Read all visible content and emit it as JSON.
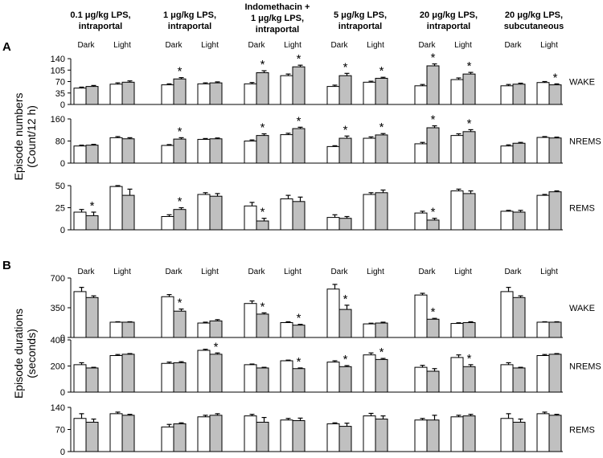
{
  "panel_labels": {
    "a": "A",
    "b": "B"
  },
  "y_labels": {
    "a_line1": "Episode numbers",
    "a_line2": "(Count/12 h)",
    "b_line1": "Episode durations",
    "b_line2": "(seconds)"
  },
  "conditions": [
    {
      "line1": "0.1 μg/kg LPS,",
      "line2": "intraportal",
      "line3": ""
    },
    {
      "line1": "1 μg/kg LPS,",
      "line2": "intraportal",
      "line3": ""
    },
    {
      "line1": "Indomethacin +",
      "line2": "1 μg/kg LPS,",
      "line3": "intraportal"
    },
    {
      "line1": "5 μg/kg LPS,",
      "line2": "intraportal",
      "line3": ""
    },
    {
      "line1": "20 μg/kg LPS,",
      "line2": "intraportal",
      "line3": ""
    },
    {
      "line1": "20 μg/kg LPS,",
      "line2": "subcutaneous",
      "line3": ""
    }
  ],
  "phases": [
    "Dark",
    "Light"
  ],
  "colors": {
    "control": "#ffffff",
    "treated": "#c0c0c0",
    "edge": "#000000"
  },
  "chart_data": [
    {
      "type": "bar",
      "panel": "A",
      "state": "WAKE",
      "ylim": [
        0,
        140
      ],
      "yticks": [
        0,
        35,
        70,
        105,
        140
      ],
      "ylabel": "Episode numbers (Count/12 h)",
      "categories": [
        "0.1 μg/kg LPS, intraportal",
        "1 μg/kg LPS, intraportal",
        "Indomethacin + 1 μg/kg LPS, intraportal",
        "5 μg/kg LPS, intraportal",
        "20 μg/kg LPS, intraportal",
        "20 μg/kg LPS, subcutaneous"
      ],
      "series": [
        {
          "name": "Dark control",
          "values": [
            50,
            60,
            63,
            55,
            57,
            57
          ],
          "errors": [
            3,
            3,
            4,
            4,
            4,
            4
          ]
        },
        {
          "name": "Dark LPS",
          "values": [
            55,
            78,
            97,
            88,
            118,
            62
          ],
          "errors": [
            3,
            4,
            6,
            7,
            6,
            3
          ],
          "significant": [
            false,
            true,
            true,
            true,
            true,
            false
          ]
        },
        {
          "name": "Light control",
          "values": [
            62,
            63,
            88,
            68,
            76,
            67
          ],
          "errors": [
            4,
            3,
            5,
            3,
            5,
            3
          ]
        },
        {
          "name": "Light LPS",
          "values": [
            68,
            66,
            115,
            80,
            93,
            60
          ],
          "errors": [
            4,
            3,
            5,
            3,
            5,
            3
          ],
          "significant": [
            false,
            false,
            true,
            true,
            true,
            true
          ]
        }
      ]
    },
    {
      "type": "bar",
      "panel": "A",
      "state": "NREMS",
      "ylim": [
        0,
        160
      ],
      "yticks": [
        0,
        80,
        160
      ],
      "categories": [
        "0.1 μg/kg LPS, intraportal",
        "1 μg/kg LPS, intraportal",
        "Indomethacin + 1 μg/kg LPS, intraportal",
        "5 μg/kg LPS, intraportal",
        "20 μg/kg LPS, intraportal",
        "20 μg/kg LPS, subcutaneous"
      ],
      "series": [
        {
          "name": "Dark control",
          "values": [
            62,
            64,
            80,
            60,
            70,
            62
          ],
          "errors": [
            3,
            3,
            4,
            3,
            5,
            4
          ]
        },
        {
          "name": "Dark LPS",
          "values": [
            65,
            87,
            100,
            90,
            128,
            72
          ],
          "errors": [
            3,
            5,
            6,
            8,
            7,
            3
          ],
          "significant": [
            false,
            true,
            true,
            true,
            true,
            false
          ]
        },
        {
          "name": "Light control",
          "values": [
            92,
            86,
            103,
            90,
            100,
            93
          ],
          "errors": [
            4,
            3,
            5,
            5,
            6,
            3
          ]
        },
        {
          "name": "Light LPS",
          "values": [
            88,
            88,
            125,
            102,
            114,
            91
          ],
          "errors": [
            4,
            3,
            5,
            5,
            7,
            3
          ],
          "significant": [
            false,
            false,
            true,
            true,
            true,
            false
          ]
        }
      ]
    },
    {
      "type": "bar",
      "panel": "A",
      "state": "REMS",
      "ylim": [
        0,
        50
      ],
      "yticks": [
        0,
        25,
        50
      ],
      "categories": [
        "0.1 μg/kg LPS, intraportal",
        "1 μg/kg LPS, intraportal",
        "Indomethacin + 1 μg/kg LPS, intraportal",
        "5 μg/kg LPS, intraportal",
        "20 μg/kg LPS, intraportal",
        "20 μg/kg LPS, subcutaneous"
      ],
      "series": [
        {
          "name": "Dark control",
          "values": [
            20,
            15,
            27,
            14,
            19,
            21
          ],
          "errors": [
            3,
            2,
            4,
            3,
            2,
            1
          ]
        },
        {
          "name": "Dark LPS",
          "values": [
            16,
            23,
            10,
            13,
            11,
            20
          ],
          "errors": [
            4,
            2,
            3,
            2,
            2,
            2
          ],
          "significant": [
            true,
            true,
            true,
            false,
            true,
            false
          ]
        },
        {
          "name": "Light control",
          "values": [
            49,
            40,
            35,
            40,
            44,
            39
          ],
          "errors": [
            1,
            2,
            4,
            2,
            2,
            1
          ]
        },
        {
          "name": "Light LPS",
          "values": [
            39,
            38,
            32,
            42,
            41,
            43
          ],
          "errors": [
            7,
            3,
            5,
            3,
            3,
            1
          ],
          "significant": [
            false,
            false,
            false,
            false,
            false,
            false
          ]
        }
      ]
    },
    {
      "type": "bar",
      "panel": "B",
      "state": "WAKE",
      "ylim": [
        0,
        700
      ],
      "yticks": [
        0,
        350,
        700
      ],
      "ylabel": "Episode durations (seconds)",
      "categories": [
        "0.1 μg/kg LPS, intraportal",
        "1 μg/kg LPS, intraportal",
        "Indomethacin + 1 μg/kg LPS, intraportal",
        "5 μg/kg LPS, intraportal",
        "20 μg/kg LPS, intraportal",
        "20 μg/kg LPS, subcutaneous"
      ],
      "series": [
        {
          "name": "Dark control",
          "values": [
            540,
            480,
            400,
            570,
            500,
            540
          ],
          "errors": [
            50,
            25,
            30,
            55,
            20,
            50
          ]
        },
        {
          "name": "Dark LPS",
          "values": [
            470,
            310,
            275,
            330,
            215,
            470
          ],
          "errors": [
            20,
            25,
            15,
            50,
            10,
            20
          ],
          "significant": [
            false,
            true,
            true,
            true,
            true,
            false
          ]
        },
        {
          "name": "Light control",
          "values": [
            180,
            170,
            175,
            160,
            165,
            180
          ],
          "errors": [
            5,
            10,
            10,
            8,
            8,
            5
          ]
        },
        {
          "name": "Light LPS",
          "values": [
            180,
            195,
            145,
            170,
            175,
            180
          ],
          "errors": [
            5,
            15,
            10,
            10,
            10,
            5
          ],
          "significant": [
            false,
            false,
            true,
            false,
            false,
            false
          ]
        }
      ]
    },
    {
      "type": "bar",
      "panel": "B",
      "state": "NREMS",
      "ylim": [
        0,
        400
      ],
      "yticks": [
        0,
        200,
        400
      ],
      "categories": [
        "0.1 μg/kg LPS, intraportal",
        "1 μg/kg LPS, intraportal",
        "Indomethacin + 1 μg/kg LPS, intraportal",
        "5 μg/kg LPS, intraportal",
        "20 μg/kg LPS, intraportal",
        "20 μg/kg LPS, subcutaneous"
      ],
      "series": [
        {
          "name": "Dark control",
          "values": [
            210,
            220,
            210,
            230,
            190,
            210
          ],
          "errors": [
            15,
            10,
            5,
            10,
            15,
            15
          ]
        },
        {
          "name": "Dark LPS",
          "values": [
            185,
            225,
            185,
            195,
            160,
            185
          ],
          "errors": [
            5,
            8,
            5,
            8,
            20,
            5
          ],
          "significant": [
            false,
            false,
            false,
            true,
            false,
            false
          ]
        },
        {
          "name": "Light control",
          "values": [
            280,
            320,
            240,
            285,
            265,
            280
          ],
          "errors": [
            8,
            8,
            5,
            15,
            20,
            8
          ]
        },
        {
          "name": "Light LPS",
          "values": [
            290,
            290,
            180,
            250,
            195,
            290
          ],
          "errors": [
            5,
            10,
            5,
            8,
            15,
            5
          ],
          "significant": [
            false,
            true,
            true,
            true,
            true,
            false
          ]
        }
      ]
    },
    {
      "type": "bar",
      "panel": "B",
      "state": "REMS",
      "ylim": [
        0,
        140
      ],
      "yticks": [
        0,
        70,
        140
      ],
      "categories": [
        "0.1 μg/kg LPS, intraportal",
        "1 μg/kg LPS, intraportal",
        "Indomethacin + 1 μg/kg LPS, intraportal",
        "5 μg/kg LPS, intraportal",
        "20 μg/kg LPS, intraportal",
        "20 μg/kg LPS, subcutaneous"
      ],
      "series": [
        {
          "name": "Dark control",
          "values": [
            105,
            78,
            113,
            88,
            100,
            105
          ],
          "errors": [
            15,
            8,
            5,
            3,
            5,
            15
          ]
        },
        {
          "name": "Dark LPS",
          "values": [
            93,
            88,
            93,
            80,
            100,
            93
          ],
          "errors": [
            10,
            3,
            15,
            10,
            15,
            10
          ]
        },
        {
          "name": "Light control",
          "values": [
            120,
            110,
            100,
            113,
            110,
            120
          ],
          "errors": [
            5,
            5,
            5,
            8,
            5,
            5
          ]
        },
        {
          "name": "Light LPS",
          "values": [
            115,
            115,
            98,
            103,
            113,
            115
          ],
          "errors": [
            3,
            5,
            8,
            10,
            5,
            3
          ]
        }
      ]
    }
  ]
}
